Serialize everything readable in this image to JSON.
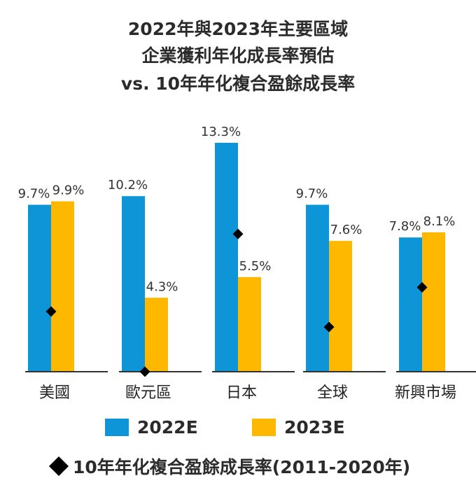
{
  "title_lines": [
    "2022年與2023年主要區域",
    "企業獲利年化成長率預估",
    "vs. 10年年化複合盈餘成長率"
  ],
  "colors": {
    "series_2022": "#0d95d8",
    "series_2023": "#ffb800",
    "marker": "#000000",
    "axis": "#333333"
  },
  "legend": {
    "s1": "2022E",
    "s2": "2023E",
    "marker": "10年年化複合盈餘成長率(2011-2020年)"
  },
  "chart_data": {
    "type": "bar",
    "categories": [
      "美國",
      "歐元區",
      "日本",
      "全球",
      "新興市場"
    ],
    "series": [
      {
        "name": "2022E",
        "values": [
          9.7,
          10.2,
          13.3,
          9.7,
          7.8
        ],
        "labels": [
          "9.7%",
          "10.2%",
          "13.3%",
          "9.7%",
          "7.8%"
        ]
      },
      {
        "name": "2023E",
        "values": [
          9.9,
          4.3,
          5.5,
          7.6,
          8.1
        ],
        "labels": [
          "9.9%",
          "4.3%",
          "5.5%",
          "7.6%",
          "8.1%"
        ]
      }
    ],
    "markers": {
      "name": "10年年化複合盈餘成長率(2011-2020年)",
      "values": [
        3.5,
        0.0,
        8.0,
        2.6,
        4.9
      ]
    },
    "ylim": [
      0,
      13.3
    ],
    "grid": false,
    "legend_position": "bottom"
  }
}
